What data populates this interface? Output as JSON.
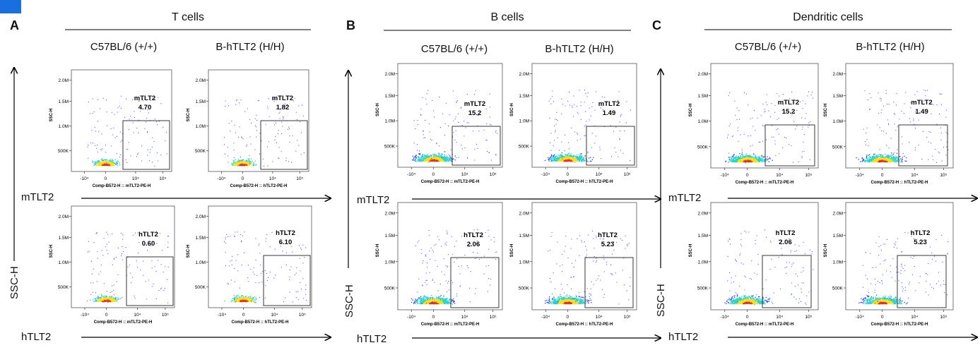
{
  "panels": [
    {
      "letter": "A",
      "group_title": "T cells",
      "strains": [
        "C57BL/6 (+/+)",
        "B-hTLT2 (H/H)"
      ],
      "row_labels": [
        "mTLT2",
        "hTLT2"
      ],
      "y_axis_label": "SSC-H"
    },
    {
      "letter": "B",
      "group_title": "B cells",
      "strains": [
        "C57BL/6 (+/+)",
        "B-hTLT2 (H/H)"
      ],
      "row_labels": [
        "mTLT2",
        "hTLT2"
      ],
      "y_axis_label": "SSC-H"
    },
    {
      "letter": "C",
      "group_title": "Dendritic cells",
      "strains": [
        "C57BL/6 (+/+)",
        "B-hTLT2 (H/H)"
      ],
      "row_labels": [
        "mTLT2",
        "hTLT2"
      ],
      "y_axis_label": "SSC-H"
    }
  ],
  "chart_data": [
    {
      "type": "scatter",
      "panel": "A",
      "strain": "C57BL/6 (+/+)",
      "gate_label": "mTLT2",
      "gate_value": "4.70",
      "xlabel": "Comp-B572-H :: mTLT2-PE-H",
      "ylabel": "SSC-H",
      "x_ticks": [
        "-10⁴",
        "0",
        "10⁴",
        "10⁵"
      ],
      "y_ticks": [
        "500K",
        "1.0M",
        "1.5M",
        "2.0M"
      ]
    },
    {
      "type": "scatter",
      "panel": "A",
      "strain": "B-hTLT2 (H/H)",
      "gate_label": "mTLT2",
      "gate_value": "1.82",
      "xlabel": "Comp-B572-H :: hTLT2-PE-H",
      "ylabel": "SSC-H",
      "x_ticks": [
        "-10⁴",
        "0",
        "10⁴",
        "10⁵"
      ],
      "y_ticks": [
        "500K",
        "1.0M",
        "1.5M",
        "2.0M"
      ]
    },
    {
      "type": "scatter",
      "panel": "A",
      "strain": "C57BL/6 (+/+)",
      "gate_label": "hTLT2",
      "gate_value": "0.60",
      "xlabel": "Comp-B572-H :: mTLT2-PE-H",
      "ylabel": "SSC-H",
      "x_ticks": [
        "-10⁴",
        "0",
        "10⁴",
        "10⁵"
      ],
      "y_ticks": [
        "500K",
        "1.0M",
        "1.5M",
        "2.0M"
      ]
    },
    {
      "type": "scatter",
      "panel": "A",
      "strain": "B-hTLT2 (H/H)",
      "gate_label": "hTLT2",
      "gate_value": "6.10",
      "xlabel": "Comp-B572-H :: hTLT2-PE-H",
      "ylabel": "SSC-H",
      "x_ticks": [
        "-10⁴",
        "0",
        "10⁴",
        "10⁵"
      ],
      "y_ticks": [
        "500K",
        "1.0M",
        "1.5M",
        "2.0M"
      ]
    },
    {
      "type": "scatter",
      "panel": "B",
      "strain": "C57BL/6 (+/+)",
      "gate_label": "mTLT2",
      "gate_value": "15.2",
      "xlabel": "Comp-B572-H :: mTLT2-PE-H",
      "ylabel": "SSC-H",
      "x_ticks": [
        "-10⁴",
        "0",
        "10⁴",
        "10⁵"
      ],
      "y_ticks": [
        "500K",
        "1.0M",
        "1.5M",
        "2.0M"
      ]
    },
    {
      "type": "scatter",
      "panel": "B",
      "strain": "B-hTLT2 (H/H)",
      "gate_label": "mTLT2",
      "gate_value": "1.49",
      "xlabel": "Comp-B572-H :: hTLT2-PE-H",
      "ylabel": "SSC-H",
      "x_ticks": [
        "-10⁴",
        "0",
        "10⁴",
        "10⁵"
      ],
      "y_ticks": [
        "500K",
        "1.0M",
        "1.5M",
        "2.0M"
      ]
    },
    {
      "type": "scatter",
      "panel": "B",
      "strain": "C57BL/6 (+/+)",
      "gate_label": "hTLT2",
      "gate_value": "2.06",
      "xlabel": "Comp-B572-H :: mTLT2-PE-H",
      "ylabel": "SSC-H",
      "x_ticks": [
        "-10⁴",
        "0",
        "10⁴",
        "10⁵"
      ],
      "y_ticks": [
        "500K",
        "1.0M",
        "1.5M",
        "2.0M"
      ]
    },
    {
      "type": "scatter",
      "panel": "B",
      "strain": "B-hTLT2 (H/H)",
      "gate_label": "hTLT2",
      "gate_value": "5.23",
      "xlabel": "Comp-B572-H :: hTLT2-PE-H",
      "ylabel": "SSC-H",
      "x_ticks": [
        "-10⁴",
        "0",
        "10⁴",
        "10⁵"
      ],
      "y_ticks": [
        "500K",
        "1.0M",
        "1.5M",
        "2.0M"
      ]
    },
    {
      "type": "scatter",
      "panel": "C",
      "strain": "C57BL/6 (+/+)",
      "gate_label": "mTLT2",
      "gate_value": "15.2",
      "xlabel": "Comp-B572-H :: mTLT2-PE-H",
      "ylabel": "SSC-H",
      "x_ticks": [
        "-10⁴",
        "0",
        "10⁴",
        "10⁵"
      ],
      "y_ticks": [
        "500K",
        "1.0M",
        "1.5M",
        "2.0M"
      ]
    },
    {
      "type": "scatter",
      "panel": "C",
      "strain": "B-hTLT2 (H/H)",
      "gate_label": "mTLT2",
      "gate_value": "1.49",
      "xlabel": "Comp-B572-H :: hTLT2-PE-H",
      "ylabel": "SSC-H",
      "x_ticks": [
        "-10⁴",
        "0",
        "10⁴",
        "10⁵"
      ],
      "y_ticks": [
        "500K",
        "1.0M",
        "1.5M",
        "2.0M"
      ]
    },
    {
      "type": "scatter",
      "panel": "C",
      "strain": "C57BL/6 (+/+)",
      "gate_label": "hTLT2",
      "gate_value": "2.06",
      "xlabel": "Comp-B572-H :: mTLT2-PE-H",
      "ylabel": "SSC-H",
      "x_ticks": [
        "-10⁴",
        "0",
        "10⁴",
        "10⁵"
      ],
      "y_ticks": [
        "500K",
        "1.0M",
        "1.5M",
        "2.0M"
      ]
    },
    {
      "type": "scatter",
      "panel": "C",
      "strain": "B-hTLT2 (H/H)",
      "gate_label": "hTLT2",
      "gate_value": "5.23",
      "xlabel": "Comp-B572-H :: hTLT2-PE-H",
      "ylabel": "SSC-H",
      "x_ticks": [
        "-10⁴",
        "0",
        "10⁴",
        "10⁵"
      ],
      "y_ticks": [
        "500K",
        "1.0M",
        "1.5M",
        "2.0M"
      ]
    }
  ],
  "colors": {
    "badge": "#1a6fe0",
    "density_low": "#1f3cff",
    "density_mid": "#27d3c8",
    "density_high": "#f7e01c",
    "density_peak": "#e8331c"
  }
}
